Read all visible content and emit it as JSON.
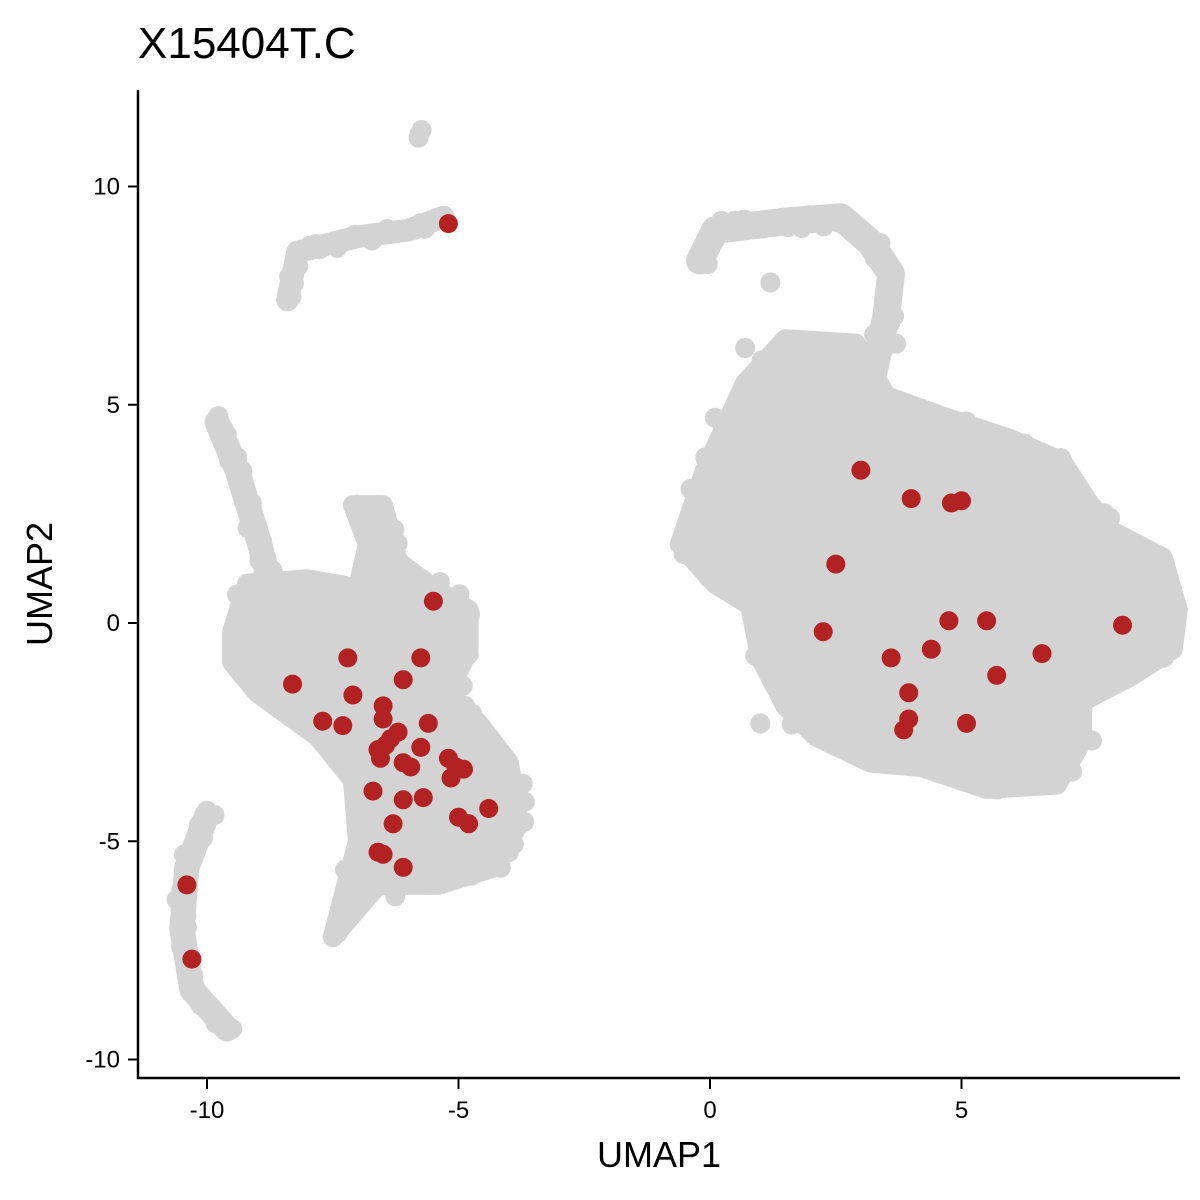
{
  "chart_data": {
    "type": "scatter",
    "title": "X15404T.C",
    "xlabel": "UMAP1",
    "ylabel": "UMAP2",
    "xlim": [
      -11.4,
      9.2
    ],
    "ylim": [
      -10.3,
      12.1
    ],
    "xticks": [
      -10,
      -5,
      0,
      5
    ],
    "yticks": [
      -10,
      -5,
      0,
      5,
      10
    ],
    "xtick_labels": [
      "-10",
      "-5",
      "0",
      "5"
    ],
    "ytick_labels": [
      "-10",
      "-5",
      "0",
      "5",
      "10"
    ],
    "grid": false,
    "legend": "none",
    "colors": {
      "background_cells": "#d3d3d3",
      "highlighted_cells": "#b22222"
    },
    "background_clusters": [
      {
        "name": "upper-left-strand",
        "polyline": [
          [
            -8.4,
            7.4
          ],
          [
            -8.2,
            8.5
          ],
          [
            -7.0,
            8.85
          ],
          [
            -6.0,
            9.0
          ],
          [
            -5.3,
            9.3
          ]
        ],
        "width": 0.45
      },
      {
        "name": "top-isolated",
        "polyline": [
          [
            -5.8,
            11.2
          ],
          [
            -5.75,
            11.2
          ]
        ],
        "width": 0.35
      },
      {
        "name": "left-strand",
        "polyline": [
          [
            -9.8,
            4.6
          ],
          [
            -9.4,
            3.5
          ],
          [
            -9.0,
            2.0
          ],
          [
            -8.6,
            0.3
          ]
        ],
        "width": 0.5
      },
      {
        "name": "lower-left-arc",
        "polyline": [
          [
            -10.0,
            -4.4
          ],
          [
            -10.4,
            -5.6
          ],
          [
            -10.5,
            -7.0
          ],
          [
            -10.3,
            -8.4
          ],
          [
            -9.6,
            -9.3
          ]
        ],
        "width": 0.5
      },
      {
        "name": "right-strand",
        "polyline": [
          [
            -0.2,
            8.3
          ],
          [
            0.1,
            9.0
          ],
          [
            1.5,
            9.2
          ],
          [
            2.6,
            9.3
          ],
          [
            3.2,
            8.7
          ],
          [
            3.6,
            8.0
          ],
          [
            3.5,
            7.0
          ],
          [
            3.2,
            5.5
          ]
        ],
        "width": 0.55
      },
      {
        "name": "left-main-body",
        "polygon": [
          [
            -9.5,
            -0.2
          ],
          [
            -9.2,
            0.9
          ],
          [
            -8.0,
            1.0
          ],
          [
            -7.0,
            0.8
          ],
          [
            -6.8,
            1.8
          ],
          [
            -7.1,
            2.7
          ],
          [
            -6.5,
            2.7
          ],
          [
            -6.2,
            1.4
          ],
          [
            -5.5,
            0.8
          ],
          [
            -4.8,
            0.3
          ],
          [
            -4.8,
            -0.6
          ],
          [
            -5.2,
            -1.6
          ],
          [
            -4.6,
            -2.3
          ],
          [
            -4.0,
            -3.2
          ],
          [
            -3.8,
            -4.6
          ],
          [
            -4.3,
            -5.6
          ],
          [
            -5.4,
            -6.0
          ],
          [
            -6.6,
            -6.0
          ],
          [
            -7.2,
            -6.8
          ],
          [
            -7.5,
            -7.2
          ],
          [
            -7.0,
            -5.0
          ],
          [
            -7.1,
            -3.6
          ],
          [
            -7.8,
            -2.6
          ],
          [
            -9.0,
            -1.6
          ],
          [
            -9.5,
            -0.9
          ]
        ]
      },
      {
        "name": "right-main-body",
        "polygon": [
          [
            -0.6,
            1.8
          ],
          [
            -0.1,
            3.5
          ],
          [
            0.7,
            5.5
          ],
          [
            1.5,
            6.5
          ],
          [
            2.9,
            6.4
          ],
          [
            3.5,
            5.2
          ],
          [
            4.7,
            4.7
          ],
          [
            6.0,
            4.2
          ],
          [
            7.0,
            3.7
          ],
          [
            7.5,
            2.8
          ],
          [
            8.0,
            2.1
          ],
          [
            9.0,
            1.5
          ],
          [
            9.3,
            0.3
          ],
          [
            9.2,
            -0.6
          ],
          [
            8.4,
            -1.2
          ],
          [
            7.4,
            -1.8
          ],
          [
            7.4,
            -2.7
          ],
          [
            6.9,
            -3.7
          ],
          [
            5.5,
            -3.8
          ],
          [
            4.2,
            -3.3
          ],
          [
            3.2,
            -3.2
          ],
          [
            2.1,
            -2.6
          ],
          [
            1.5,
            -1.9
          ],
          [
            1.0,
            -0.8
          ],
          [
            0.8,
            0.4
          ],
          [
            0.1,
            0.9
          ]
        ]
      }
    ],
    "background_extra_points": [
      [
        -8.4,
        7.4
      ],
      [
        -9.4,
        3.8
      ],
      [
        -6.6,
        2.7
      ],
      [
        -5.7,
        0.5
      ],
      [
        -9.5,
        -9.3
      ],
      [
        -10.0,
        -4.3
      ],
      [
        -7.4,
        -7.1
      ],
      [
        -8.0,
        -0.5
      ],
      [
        1.0,
        -2.3
      ],
      [
        0.7,
        6.3
      ],
      [
        1.2,
        7.8
      ],
      [
        3.7,
        6.4
      ],
      [
        4.0,
        4.2
      ],
      [
        5.6,
        3.0
      ],
      [
        6.5,
        1.7
      ],
      [
        0.1,
        4.7
      ],
      [
        0.8,
        0.6
      ],
      [
        1.0,
        0.0
      ],
      [
        2.3,
        5.1
      ],
      [
        4.2,
        -0.2
      ],
      [
        3.9,
        -3.0
      ],
      [
        7.2,
        -3.4
      ],
      [
        8.7,
        -0.7
      ]
    ],
    "highlighted_points": [
      [
        -5.2,
        9.15
      ],
      [
        -5.5,
        0.5
      ],
      [
        -5.75,
        -0.8
      ],
      [
        -7.2,
        -0.8
      ],
      [
        -6.1,
        -1.3
      ],
      [
        -8.3,
        -1.4
      ],
      [
        -7.1,
        -1.65
      ],
      [
        -6.5,
        -1.9
      ],
      [
        -7.7,
        -2.25
      ],
      [
        -7.3,
        -2.35
      ],
      [
        -6.5,
        -2.2
      ],
      [
        -5.6,
        -2.3
      ],
      [
        -6.2,
        -2.5
      ],
      [
        -6.35,
        -2.65
      ],
      [
        -6.45,
        -2.8
      ],
      [
        -6.6,
        -2.9
      ],
      [
        -5.75,
        -2.85
      ],
      [
        -6.55,
        -3.1
      ],
      [
        -6.1,
        -3.2
      ],
      [
        -5.95,
        -3.3
      ],
      [
        -5.2,
        -3.1
      ],
      [
        -5.05,
        -3.3
      ],
      [
        -4.9,
        -3.35
      ],
      [
        -5.15,
        -3.55
      ],
      [
        -6.7,
        -3.85
      ],
      [
        -6.1,
        -4.05
      ],
      [
        -5.7,
        -4.0
      ],
      [
        -4.4,
        -4.25
      ],
      [
        -5.0,
        -4.45
      ],
      [
        -4.8,
        -4.6
      ],
      [
        -6.3,
        -4.6
      ],
      [
        -6.6,
        -5.25
      ],
      [
        -6.5,
        -5.3
      ],
      [
        -6.1,
        -5.6
      ],
      [
        -10.4,
        -6.0
      ],
      [
        -10.3,
        -7.7
      ],
      [
        3.0,
        3.5
      ],
      [
        4.0,
        2.85
      ],
      [
        4.8,
        2.75
      ],
      [
        5.0,
        2.8
      ],
      [
        2.5,
        1.35
      ],
      [
        2.25,
        -0.2
      ],
      [
        4.75,
        0.05
      ],
      [
        5.5,
        0.05
      ],
      [
        8.2,
        -0.05
      ],
      [
        4.4,
        -0.6
      ],
      [
        3.6,
        -0.8
      ],
      [
        6.6,
        -0.7
      ],
      [
        5.7,
        -1.2
      ],
      [
        3.95,
        -1.6
      ],
      [
        3.95,
        -2.2
      ],
      [
        3.85,
        -2.45
      ],
      [
        5.1,
        -2.3
      ]
    ]
  }
}
